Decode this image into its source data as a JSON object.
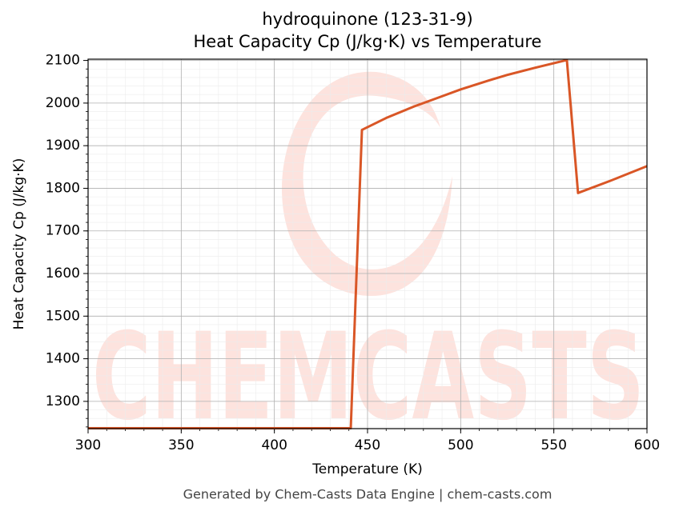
{
  "chart_data": {
    "type": "line",
    "title": "hydroquinone (123-31-9)",
    "subtitle": "Heat Capacity Cp (J/kg·K) vs Temperature",
    "xlabel": "Temperature (K)",
    "ylabel": "Heat Capacity Cp (J/kg·K)",
    "footer": "Generated by Chem-Casts Data Engine | chem-casts.com",
    "watermark": "CHEMCASTS",
    "x": [
      300,
      441,
      447,
      460,
      475,
      490,
      500,
      515,
      525,
      540,
      557,
      563,
      580,
      600
    ],
    "series": [
      {
        "name": "Cp",
        "color": "#d95626",
        "values": [
          1237,
          1237,
          1937,
          1965,
          1992,
          2016,
          2032,
          2053,
          2066,
          2083,
          2101,
          1789,
          1817,
          1852
        ]
      }
    ],
    "xlim": [
      300,
      600
    ],
    "xticks": [
      300,
      350,
      400,
      450,
      500,
      550,
      600
    ],
    "ylim": [
      1236,
      2103
    ],
    "yticks": [
      1300,
      1400,
      1500,
      1600,
      1700,
      1800,
      1900,
      2000,
      2100
    ],
    "minor_xticks": [
      300,
      310,
      320,
      330,
      340,
      350,
      360,
      370,
      380,
      390,
      400,
      410,
      420,
      430,
      440,
      450,
      460,
      470,
      480,
      490,
      500,
      510,
      520,
      530,
      540,
      550,
      560,
      570,
      580,
      590,
      600
    ],
    "minor_yticks": [
      1240,
      1260,
      1280,
      1300,
      1320,
      1340,
      1360,
      1380,
      1400,
      1420,
      1440,
      1460,
      1480,
      1500,
      1520,
      1540,
      1560,
      1580,
      1600,
      1620,
      1640,
      1660,
      1680,
      1700,
      1720,
      1740,
      1760,
      1780,
      1800,
      1820,
      1840,
      1860,
      1880,
      1900,
      1920,
      1940,
      1960,
      1980,
      2000,
      2020,
      2040,
      2060,
      2080,
      2100
    ],
    "grid": true
  }
}
